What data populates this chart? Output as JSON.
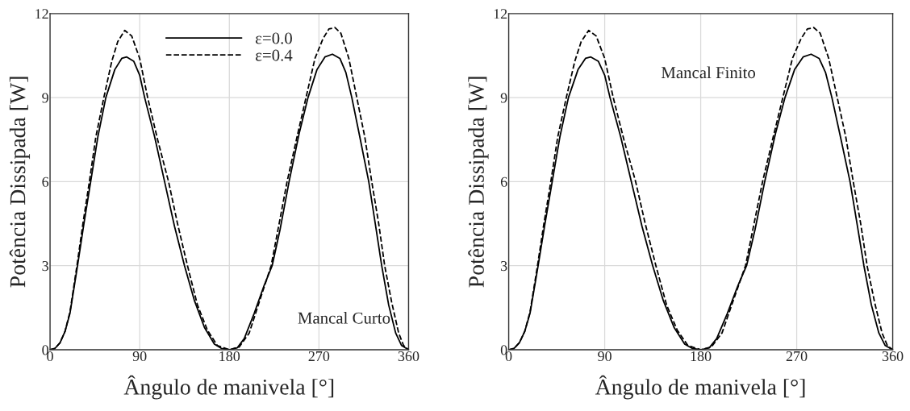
{
  "chart_data": [
    {
      "type": "line",
      "xlabel": "Ângulo de manivela [°]",
      "ylabel": "Potência Dissipada [W]",
      "xlim": [
        0,
        360
      ],
      "ylim": [
        0,
        12
      ],
      "xticks": [
        0,
        90,
        180,
        270,
        360
      ],
      "yticks": [
        0,
        3,
        6,
        9,
        12
      ],
      "grid": true,
      "legend": "top",
      "annotations": [
        "Mancal Curto"
      ],
      "series": [
        {
          "name": "ε=0.0",
          "color": "#000000",
          "line_style": "solid",
          "x": [
            0,
            5,
            10,
            15,
            20,
            27.6,
            34,
            40.8,
            48,
            56,
            65,
            72,
            77,
            84,
            90,
            95,
            105,
            115,
            125,
            135,
            145,
            155,
            165,
            172,
            180,
            188,
            195,
            205,
            215,
            223,
            231,
            240,
            250,
            259,
            268,
            276,
            283.5,
            291,
            297,
            303,
            311,
            320,
            327,
            333,
            340,
            347,
            353,
            360
          ],
          "values": [
            0,
            0.05,
            0.25,
            0.65,
            1.3,
            3,
            4.5,
            6,
            7.6,
            9,
            10.0,
            10.4,
            10.45,
            10.3,
            9.8,
            9,
            7.6,
            6,
            4.4,
            3,
            1.75,
            0.8,
            0.2,
            0.05,
            0,
            0.07,
            0.4,
            1.3,
            2.3,
            3,
            4.3,
            6,
            7.7,
            9,
            10.0,
            10.45,
            10.55,
            10.4,
            9.9,
            9,
            7.6,
            6,
            4.4,
            3,
            1.6,
            0.6,
            0.15,
            0
          ]
        },
        {
          "name": "ε=0.4",
          "color": "#000000",
          "line_style": "dashed",
          "x": [
            0,
            5,
            10,
            15,
            20,
            27,
            33,
            39.5,
            46,
            54,
            62,
            68,
            75,
            82,
            90,
            98,
            108,
            119,
            128,
            138,
            148,
            158,
            168,
            180,
            190,
            200,
            210,
            222,
            230,
            238,
            248,
            257,
            266,
            274,
            280,
            286,
            292,
            300,
            308,
            316,
            323,
            330,
            336,
            343,
            350,
            355,
            360
          ],
          "values": [
            0,
            0.05,
            0.25,
            0.65,
            1.35,
            3,
            4.5,
            6,
            7.6,
            9,
            10.3,
            11.0,
            11.4,
            11.2,
            10.4,
            9,
            7.5,
            6,
            4.5,
            3,
            1.6,
            0.7,
            0.15,
            0,
            0.1,
            0.6,
            1.7,
            3,
            4.5,
            6,
            7.6,
            9,
            10.4,
            11.1,
            11.45,
            11.5,
            11.3,
            10.4,
            9,
            7.6,
            6,
            4.5,
            3,
            1.7,
            0.6,
            0.15,
            0
          ]
        }
      ]
    },
    {
      "type": "line",
      "xlabel": "Ângulo de manivela [°]",
      "ylabel": "Potência Dissipada [W]",
      "xlim": [
        0,
        360
      ],
      "ylim": [
        0,
        12
      ],
      "xticks": [
        0,
        90,
        180,
        270,
        360
      ],
      "yticks": [
        0,
        3,
        6,
        9,
        12
      ],
      "grid": true,
      "annotations": [
        "Mancal Finito"
      ],
      "series": [
        {
          "color": "#000000",
          "line_style": "solid",
          "x": [
            0,
            5,
            10,
            15,
            20,
            27.6,
            34,
            40.8,
            48,
            56,
            65,
            72,
            77,
            84,
            90,
            95,
            105,
            115,
            125,
            135,
            145,
            155,
            165,
            172,
            180,
            188,
            195,
            205,
            215,
            223,
            231,
            240,
            250,
            259,
            268,
            276,
            283.5,
            291,
            297,
            303,
            311,
            320,
            327,
            333,
            340,
            347,
            353,
            360
          ],
          "values": [
            0,
            0.05,
            0.25,
            0.65,
            1.3,
            3,
            4.5,
            6,
            7.6,
            9,
            10.0,
            10.4,
            10.45,
            10.3,
            9.8,
            9,
            7.6,
            6,
            4.4,
            3,
            1.75,
            0.8,
            0.2,
            0.05,
            0,
            0.07,
            0.4,
            1.3,
            2.3,
            3,
            4.3,
            6,
            7.7,
            9,
            10.0,
            10.45,
            10.55,
            10.4,
            9.9,
            9,
            7.6,
            6,
            4.4,
            3,
            1.6,
            0.6,
            0.15,
            0
          ]
        },
        {
          "color": "#000000",
          "line_style": "dashed",
          "x": [
            0,
            5,
            10,
            15,
            20,
            27,
            33,
            39.5,
            46,
            54,
            62,
            68,
            75,
            82,
            90,
            98,
            108,
            119,
            128,
            138,
            148,
            158,
            168,
            180,
            190,
            200,
            210,
            222,
            230,
            238,
            248,
            257,
            266,
            274,
            280,
            286,
            292,
            300,
            308,
            316,
            323,
            330,
            336,
            343,
            350,
            355,
            360
          ],
          "values": [
            0,
            0.05,
            0.25,
            0.65,
            1.35,
            3,
            4.5,
            6,
            7.6,
            9,
            10.3,
            11.0,
            11.4,
            11.2,
            10.4,
            9,
            7.5,
            6,
            4.5,
            3,
            1.6,
            0.7,
            0.15,
            0,
            0.1,
            0.6,
            1.7,
            3,
            4.5,
            6,
            7.6,
            9,
            10.4,
            11.1,
            11.45,
            11.5,
            11.3,
            10.4,
            9,
            7.6,
            6,
            4.5,
            3,
            1.7,
            0.6,
            0.15,
            0
          ]
        }
      ]
    }
  ]
}
